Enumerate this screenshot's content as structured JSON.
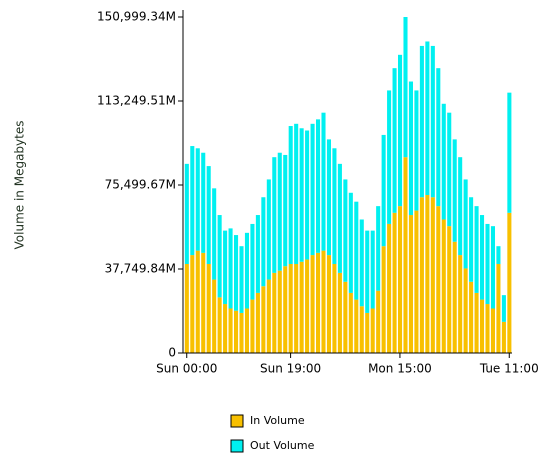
{
  "chart_data": {
    "type": "stacked_bar",
    "y_label": "Volume in Megabytes",
    "categories": [
      "Sun 00:00",
      null,
      null,
      null,
      null,
      null,
      null,
      null,
      null,
      null,
      null,
      null,
      null,
      null,
      null,
      null,
      null,
      null,
      null,
      "Sun 19:00",
      null,
      null,
      null,
      null,
      null,
      null,
      null,
      null,
      null,
      null,
      null,
      null,
      null,
      null,
      null,
      null,
      null,
      null,
      null,
      "Mon 15:00",
      null,
      null,
      null,
      null,
      null,
      null,
      null,
      null,
      null,
      null,
      null,
      null,
      null,
      null,
      null,
      null,
      null,
      null,
      null,
      "Tue 11:00"
    ],
    "series": [
      {
        "name": "In Volume",
        "color": "#f8c000",
        "values": [
          40000,
          44000,
          46000,
          45000,
          40000,
          33000,
          25000,
          22000,
          20000,
          19000,
          18000,
          20000,
          24000,
          27000,
          30000,
          33000,
          36000,
          37000,
          39000,
          40000,
          40000,
          41000,
          42000,
          44000,
          45000,
          46000,
          44000,
          40000,
          36000,
          32000,
          27000,
          24000,
          21000,
          18000,
          20000,
          28000,
          48000,
          58000,
          63000,
          66000,
          88000,
          62000,
          64000,
          70000,
          71000,
          70000,
          66000,
          60000,
          57000,
          50000,
          44000,
          38000,
          32000,
          27000,
          24000,
          22000,
          20000,
          40000,
          14000,
          63000
        ]
      },
      {
        "name": "Out Volume",
        "color": "#00f0f0",
        "values": [
          45000,
          49000,
          46000,
          45000,
          44000,
          41000,
          37000,
          33000,
          36000,
          34000,
          30000,
          34000,
          34000,
          35000,
          40000,
          45000,
          52000,
          53000,
          50000,
          62000,
          63000,
          60000,
          58000,
          59000,
          60000,
          62000,
          52000,
          52000,
          49000,
          46000,
          45000,
          44000,
          39000,
          37000,
          35000,
          38000,
          50000,
          60000,
          65000,
          68000,
          63000,
          60000,
          54000,
          68000,
          69000,
          68000,
          62000,
          52000,
          51000,
          46000,
          44000,
          40000,
          38000,
          39000,
          38000,
          36000,
          37000,
          8000,
          12000,
          54000
        ]
      }
    ],
    "ylim": [
      0,
      150999.34
    ],
    "yticks": [
      0,
      {
        "value": 37749.84,
        "label": "37,749.84M"
      },
      {
        "value": 75499.67,
        "label": "75,499.67M"
      },
      {
        "value": 113249.51,
        "label": "113,249.51M"
      },
      {
        "value": 150999.34,
        "label": "150,999.34M"
      }
    ]
  }
}
